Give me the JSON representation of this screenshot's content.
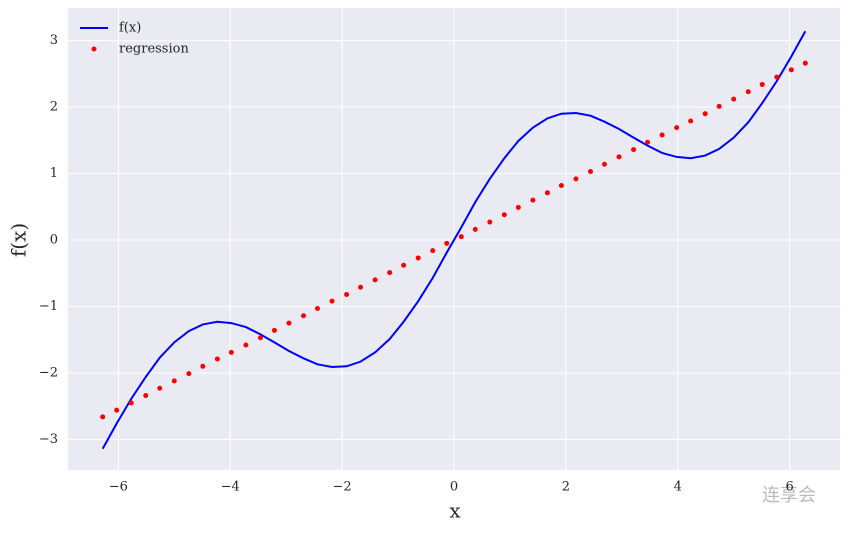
{
  "chart_data": {
    "type": "line",
    "xlabel": "x",
    "ylabel": "f(x)",
    "x": [
      -6.28,
      -6.03,
      -5.77,
      -5.51,
      -5.26,
      -5.0,
      -4.74,
      -4.49,
      -4.23,
      -3.98,
      -3.72,
      -3.46,
      -3.21,
      -2.95,
      -2.69,
      -2.44,
      -2.18,
      -1.92,
      -1.67,
      -1.41,
      -1.15,
      -0.9,
      -0.64,
      -0.38,
      -0.13,
      0.13,
      0.38,
      0.64,
      0.9,
      1.15,
      1.41,
      1.67,
      1.92,
      2.18,
      2.44,
      2.69,
      2.95,
      3.21,
      3.46,
      3.72,
      3.98,
      4.23,
      4.49,
      4.74,
      5.0,
      5.26,
      5.51,
      5.77,
      6.03,
      6.28
    ],
    "series": [
      {
        "name": "f(x)",
        "color": "#0000ff",
        "style": "line",
        "values": [
          -3.14,
          -2.76,
          -2.39,
          -2.06,
          -1.77,
          -1.54,
          -1.37,
          -1.27,
          -1.23,
          -1.25,
          -1.31,
          -1.42,
          -1.54,
          -1.67,
          -1.78,
          -1.87,
          -1.91,
          -1.9,
          -1.83,
          -1.69,
          -1.49,
          -1.23,
          -0.92,
          -0.57,
          -0.19,
          0.19,
          0.57,
          0.92,
          1.23,
          1.49,
          1.69,
          1.83,
          1.9,
          1.91,
          1.87,
          1.78,
          1.67,
          1.54,
          1.42,
          1.31,
          1.25,
          1.23,
          1.27,
          1.37,
          1.54,
          1.77,
          2.06,
          2.39,
          2.76,
          3.14
        ]
      },
      {
        "name": "regression",
        "color": "#ff0000",
        "style": "dots",
        "values": [
          -2.66,
          -2.56,
          -2.45,
          -2.34,
          -2.23,
          -2.12,
          -2.01,
          -1.9,
          -1.79,
          -1.69,
          -1.58,
          -1.47,
          -1.36,
          -1.25,
          -1.14,
          -1.03,
          -0.92,
          -0.82,
          -0.71,
          -0.6,
          -0.49,
          -0.38,
          -0.27,
          -0.16,
          -0.05,
          0.05,
          0.16,
          0.27,
          0.38,
          0.49,
          0.6,
          0.71,
          0.82,
          0.92,
          1.03,
          1.14,
          1.25,
          1.36,
          1.47,
          1.58,
          1.69,
          1.79,
          1.9,
          2.01,
          2.12,
          2.23,
          2.34,
          2.45,
          2.56,
          2.66
        ]
      }
    ],
    "xlim": [
      -6.9,
      6.9
    ],
    "ylim": [
      -3.46,
      3.49
    ],
    "xticks": [
      {
        "value": -6,
        "label": "−6"
      },
      {
        "value": -4,
        "label": "−4"
      },
      {
        "value": -2,
        "label": "−2"
      },
      0,
      2,
      4,
      6
    ],
    "yticks": [
      {
        "value": -3,
        "label": "−3"
      },
      {
        "value": -2,
        "label": "−2"
      },
      {
        "value": -1,
        "label": "−1"
      },
      0,
      1,
      2,
      3
    ],
    "grid": true,
    "legend": "upper left",
    "background": "#eaeaf2"
  },
  "watermark": "连享会"
}
